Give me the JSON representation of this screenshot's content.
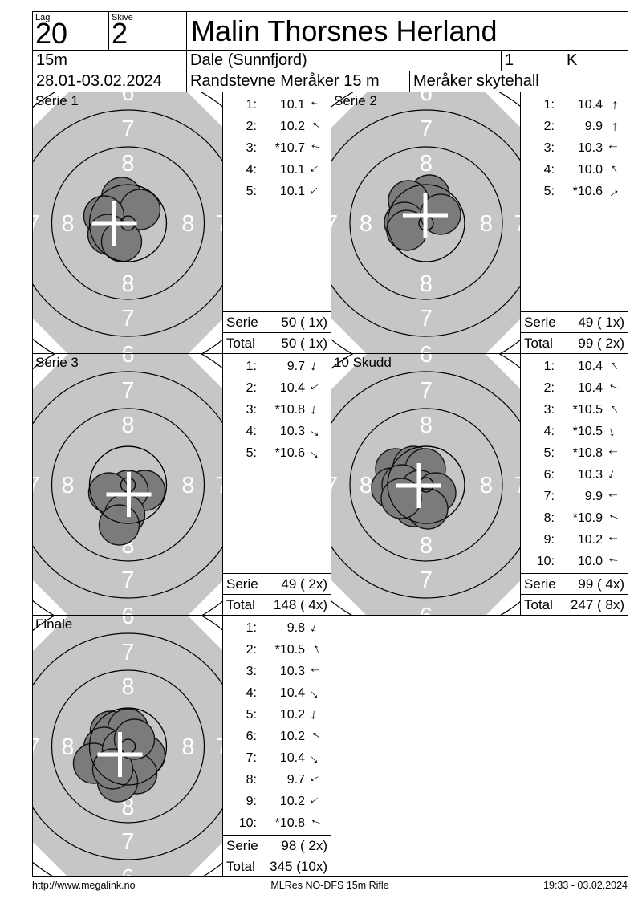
{
  "header": {
    "lag_label": "Lag",
    "lag_value": "20",
    "skive_label": "Skive",
    "skive_value": "2",
    "shooter_name": "Malin Thorsnes Herland",
    "distance": "15m",
    "club": "Dale (Sunnfjord)",
    "class_number": "1",
    "class_letter": "K",
    "date_range": "28.01-03.02.2024",
    "event_name": "Randstevne Meråker 15 m",
    "venue": "Meråker skytehall"
  },
  "footer": {
    "website": "http://www.megalink.no",
    "report_name": "MLRes NO-DFS 15m Rifle",
    "printed": "19:33 - 03.02.2024"
  },
  "target_style": {
    "background": "#c6c6c6",
    "hole_fill": "#7b7b7b",
    "hole_stroke": "#151515",
    "ring_line": "#000000",
    "ring_label_color": "#ffffff",
    "cross_color": "#ffffff",
    "ring_labels": [
      "8",
      "7",
      "6"
    ]
  },
  "panels": [
    {
      "title": "Serie 1",
      "shots": [
        {
          "n": "1:",
          "v": "10.1",
          "deg": -172
        },
        {
          "n": "2:",
          "v": "10.2",
          "deg": -140
        },
        {
          "n": "3:",
          "v": "*10.7",
          "deg": -168
        },
        {
          "n": "4:",
          "v": "10.1",
          "deg": 140
        },
        {
          "n": "5:",
          "v": "10.1",
          "deg": 132
        }
      ],
      "serie_label": "Serie",
      "serie_value": "50 ( 1x)",
      "total_label": "Total",
      "total_value": "50 ( 1x)",
      "cross": [
        -17,
        0
      ],
      "holes": [
        [
          -8,
          -32
        ],
        [
          15,
          -17
        ],
        [
          -30,
          -9
        ],
        [
          -25,
          14
        ],
        [
          -8,
          23
        ]
      ]
    },
    {
      "title": "Serie 2",
      "shots": [
        {
          "n": "1:",
          "v": "10.4",
          "deg": -86
        },
        {
          "n": "2:",
          "v": "9.9",
          "deg": -89
        },
        {
          "n": "3:",
          "v": "10.3",
          "deg": 180
        },
        {
          "n": "4:",
          "v": "10.0",
          "deg": -118
        },
        {
          "n": "5:",
          "v": "*10.6",
          "deg": -35
        }
      ],
      "serie_label": "Serie",
      "serie_value": "49 ( 1x)",
      "total_label": "Total",
      "total_value": "99 ( 2x)",
      "cross": [
        -1,
        -10
      ],
      "holes": [
        [
          4,
          -35
        ],
        [
          -22,
          -28
        ],
        [
          -27,
          -1
        ],
        [
          -24,
          9
        ],
        [
          18,
          -11
        ]
      ]
    },
    {
      "title": "Serie 3",
      "shots": [
        {
          "n": "1:",
          "v": "9.7",
          "deg": 102
        },
        {
          "n": "2:",
          "v": "10.4",
          "deg": 148
        },
        {
          "n": "3:",
          "v": "*10.8",
          "deg": 95
        },
        {
          "n": "4:",
          "v": "10.3",
          "deg": 30
        },
        {
          "n": "5:",
          "v": "*10.6",
          "deg": 42
        }
      ],
      "serie_label": "Serie",
      "serie_value": "49 ( 2x)",
      "total_label": "Total",
      "total_value": "148 ( 4x)",
      "cross": [
        1,
        12
      ],
      "holes": [
        [
          21,
          7
        ],
        [
          0,
          7
        ],
        [
          -24,
          10
        ],
        [
          -4,
          37
        ],
        [
          -11,
          50
        ]
      ]
    },
    {
      "title": "10 Skudd",
      "shots": [
        {
          "n": "1:",
          "v": "10.4",
          "deg": -128
        },
        {
          "n": "2:",
          "v": "10.4",
          "deg": -155
        },
        {
          "n": "3:",
          "v": "*10.5",
          "deg": -128
        },
        {
          "n": "4:",
          "v": "*10.5",
          "deg": 75
        },
        {
          "n": "5:",
          "v": "*10.8",
          "deg": 180
        },
        {
          "n": "6:",
          "v": "10.3",
          "deg": 112
        },
        {
          "n": "7:",
          "v": "9.9",
          "deg": 180
        },
        {
          "n": "8:",
          "v": "*10.9",
          "deg": -158
        },
        {
          "n": "9:",
          "v": "10.2",
          "deg": 180
        },
        {
          "n": "10:",
          "v": "10.0",
          "deg": -172
        }
      ],
      "serie_label": "Serie",
      "serie_value": "99 ( 4x)",
      "total_label": "Total",
      "total_value": "247 ( 8x)",
      "cross": [
        -9,
        1
      ],
      "holes": [
        [
          -38,
          -20
        ],
        [
          -16,
          -23
        ],
        [
          -1,
          -20
        ],
        [
          -43,
          4
        ],
        [
          -30,
          0
        ],
        [
          -8,
          7
        ],
        [
          12,
          10
        ],
        [
          -15,
          27
        ],
        [
          2,
          30
        ],
        [
          -31,
          17
        ]
      ]
    },
    {
      "title": "Finale",
      "shots": [
        {
          "n": "1:",
          "v": "9.8",
          "deg": 112
        },
        {
          "n": "2:",
          "v": "*10.5",
          "deg": -112
        },
        {
          "n": "3:",
          "v": "10.3",
          "deg": 180
        },
        {
          "n": "4:",
          "v": "10.4",
          "deg": 48
        },
        {
          "n": "5:",
          "v": "10.2",
          "deg": 95
        },
        {
          "n": "6:",
          "v": "10.2",
          "deg": -142
        },
        {
          "n": "7:",
          "v": "10.4",
          "deg": 48
        },
        {
          "n": "8:",
          "v": "9.7",
          "deg": 152
        },
        {
          "n": "9:",
          "v": "10.2",
          "deg": 142
        },
        {
          "n": "10:",
          "v": "*10.8",
          "deg": -160
        }
      ],
      "serie_label": "Serie",
      "serie_value": "98 ( 2x)",
      "total_label": "Total",
      "total_value": "345 (10x)",
      "cross": [
        -10,
        10
      ],
      "holes": [
        [
          -22,
          -19
        ],
        [
          0,
          -22
        ],
        [
          -30,
          1
        ],
        [
          -43,
          21
        ],
        [
          -7,
          4
        ],
        [
          21,
          11
        ],
        [
          11,
          34
        ],
        [
          -13,
          44
        ],
        [
          -19,
          28
        ],
        [
          8,
          -9
        ]
      ]
    }
  ]
}
